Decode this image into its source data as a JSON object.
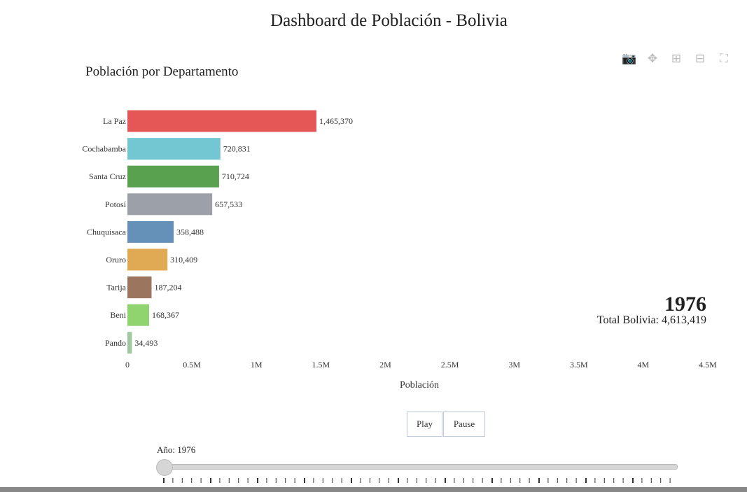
{
  "title": "Dashboard de Población - Bolivia",
  "modebar": {
    "icons": [
      "camera-icon",
      "pan-icon",
      "zoom-in-icon",
      "zoom-out-icon",
      "autoscale-icon"
    ]
  },
  "controls": {
    "play": "Play",
    "pause": "Pause",
    "slider_label": "Año: 1976",
    "slider_value": 1976,
    "slider_position_fraction": 0
  },
  "annotation": {
    "year": "1976",
    "total": "Total Bolivia: 4,613,419"
  },
  "chart_data": {
    "type": "bar",
    "orientation": "horizontal",
    "title": "Población por Departamento",
    "xlabel": "Población",
    "ylabel": "",
    "xlim": [
      0,
      4500000
    ],
    "xticks": [
      0,
      500000,
      1000000,
      1500000,
      2000000,
      2500000,
      3000000,
      3500000,
      4000000,
      4500000
    ],
    "xtick_labels": [
      "0",
      "0.5M",
      "1M",
      "1.5M",
      "2M",
      "2.5M",
      "3M",
      "3.5M",
      "4M",
      "4.5M"
    ],
    "categories": [
      "La Paz",
      "Cochabamba",
      "Santa Cruz",
      "Potosí",
      "Chuquisaca",
      "Oruro",
      "Tarija",
      "Beni",
      "Pando"
    ],
    "values": [
      1465370,
      720831,
      710724,
      657533,
      358488,
      310409,
      187204,
      168367,
      34493
    ],
    "labels": [
      "1,465,370",
      "720,831",
      "710,724",
      "657,533",
      "358,488",
      "310,409",
      "187,204",
      "168,367",
      "34,493"
    ],
    "colors": [
      "#e45756",
      "#72c7d3",
      "#59a14f",
      "#9ca0a8",
      "#6590b7",
      "#dfaa53",
      "#9c755f",
      "#8fd46e",
      "#a0c8a0"
    ],
    "grid": false
  }
}
